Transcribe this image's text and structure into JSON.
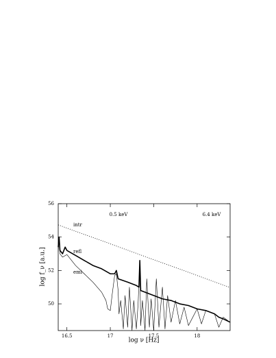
{
  "chart_data": {
    "type": "line",
    "x_label": "log ν [Hz]",
    "y_label": "log f_ν [a.u.]",
    "annotations": [
      "0.5 keV",
      "6.4 keV"
    ],
    "xlim": [
      16.4,
      18.38
    ],
    "ylim": [
      48.4,
      56
    ],
    "xticks": [
      16.5,
      17,
      17.5,
      18
    ],
    "yticks": [
      50,
      52,
      54,
      56
    ],
    "series": [
      {
        "name": "intr",
        "color": "#000000",
        "dash": "1,2",
        "width": 0.8,
        "x": [
          16.4,
          18.38
        ],
        "values": [
          54.73,
          50.98
        ]
      },
      {
        "name": "refl",
        "color": "#000000",
        "dash": "none",
        "width": 1.6,
        "x": [
          16.4,
          16.41,
          16.42,
          16.45,
          16.48,
          16.5,
          16.6,
          16.7,
          16.8,
          16.9,
          17.0,
          17.05,
          17.07,
          17.09,
          17.2,
          17.3,
          17.33,
          17.34,
          17.35,
          17.5,
          17.6,
          17.7,
          17.8,
          17.9,
          18.0,
          18.1,
          18.2,
          18.25,
          18.3,
          18.38
        ],
        "values": [
          53.4,
          54.0,
          53.2,
          53.0,
          53.4,
          53.2,
          52.9,
          52.6,
          52.3,
          52.1,
          51.8,
          51.8,
          52.0,
          51.5,
          51.3,
          51.1,
          51.0,
          52.6,
          50.8,
          50.5,
          50.3,
          50.2,
          50.0,
          49.9,
          49.7,
          49.6,
          49.4,
          49.2,
          49.1,
          48.9
        ]
      },
      {
        "name": "emi",
        "color": "#000000",
        "dash": "none",
        "width": 0.6,
        "x": [
          16.4,
          16.41,
          16.42,
          16.45,
          16.5,
          16.6,
          16.7,
          16.8,
          16.9,
          16.95,
          16.97,
          17.0,
          17.02,
          17.05,
          17.07,
          17.09,
          17.1,
          17.12,
          17.15,
          17.17,
          17.2,
          17.22,
          17.25,
          17.27,
          17.3,
          17.32,
          17.34,
          17.35,
          17.37,
          17.4,
          17.42,
          17.45,
          17.47,
          17.5,
          17.53,
          17.56,
          17.6,
          17.63,
          17.66,
          17.7,
          17.75,
          17.8,
          17.85,
          17.9,
          18.0,
          18.05,
          18.1,
          18.2,
          18.25,
          18.3,
          18.38
        ],
        "values": [
          53.1,
          53.9,
          53.0,
          52.8,
          52.95,
          52.3,
          51.8,
          51.3,
          50.7,
          50.2,
          49.7,
          49.6,
          50.5,
          51.7,
          51.8,
          50.8,
          49.4,
          50.2,
          48.5,
          50.5,
          48.6,
          51.0,
          48.4,
          50.2,
          48.5,
          50.0,
          52.5,
          48.7,
          50.2,
          48.4,
          51.5,
          48.6,
          50.3,
          48.4,
          51.5,
          48.6,
          51.0,
          48.5,
          50.5,
          48.9,
          50.2,
          48.8,
          49.8,
          48.7,
          49.7,
          48.8,
          49.6,
          49.4,
          48.6,
          49.2,
          48.9
        ]
      }
    ]
  }
}
